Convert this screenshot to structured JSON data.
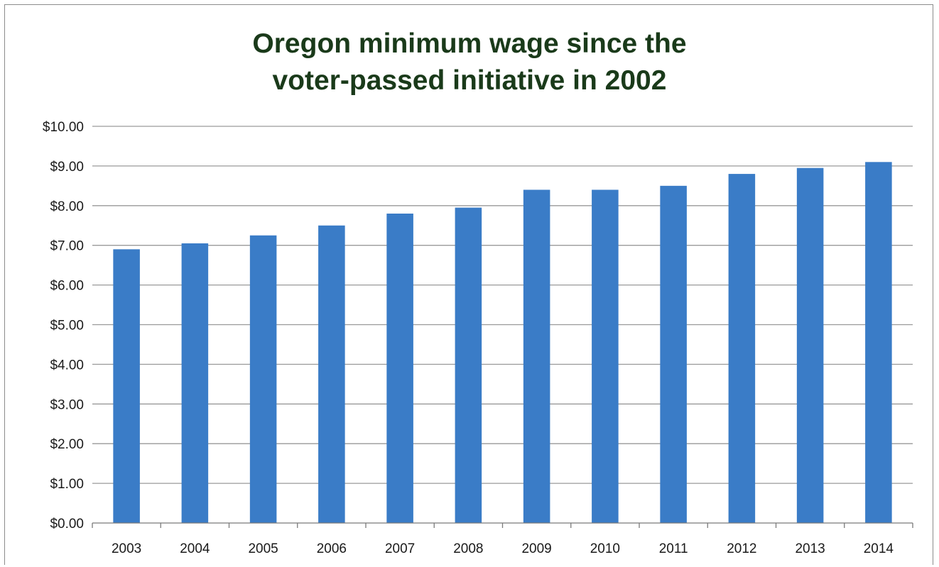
{
  "chart_data": {
    "type": "bar",
    "title_lines": [
      "Oregon minimum wage since the",
      "voter-passed initiative in 2002"
    ],
    "xlabel": "",
    "ylabel": "",
    "categories": [
      "2003",
      "2004",
      "2005",
      "2006",
      "2007",
      "2008",
      "2009",
      "2010",
      "2011",
      "2012",
      "2013",
      "2014"
    ],
    "values": [
      6.9,
      7.05,
      7.25,
      7.5,
      7.8,
      7.95,
      8.4,
      8.4,
      8.5,
      8.8,
      8.95,
      9.1
    ],
    "ylim": [
      0,
      10
    ],
    "yticks": [
      0,
      1,
      2,
      3,
      4,
      5,
      6,
      7,
      8,
      9,
      10
    ],
    "ytick_labels": [
      "$0.00",
      "$1.00",
      "$2.00",
      "$3.00",
      "$4.00",
      "$5.00",
      "$6.00",
      "$7.00",
      "$8.00",
      "$9.00",
      "$10.00"
    ],
    "grid": true,
    "legend": "none",
    "bar_color": "#3a7cc7",
    "title_color": "#1a3a1a"
  }
}
